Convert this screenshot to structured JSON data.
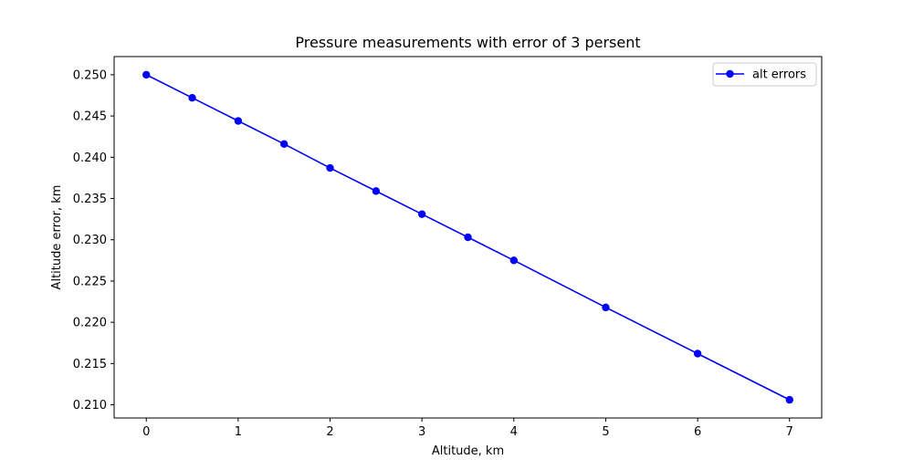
{
  "chart_data": {
    "type": "line",
    "title": "Pressure measurements with error of 3 persent",
    "xlabel": "Altitude, km",
    "ylabel": "Altitude error, km",
    "xlim": [
      -0.35,
      7.35
    ],
    "ylim": [
      0.2084,
      0.2522
    ],
    "xticks": [
      0,
      1,
      2,
      3,
      4,
      5,
      6,
      7
    ],
    "xtick_labels": [
      "0",
      "1",
      "2",
      "3",
      "4",
      "5",
      "6",
      "7"
    ],
    "yticks": [
      0.21,
      0.215,
      0.22,
      0.225,
      0.23,
      0.235,
      0.24,
      0.245,
      0.25
    ],
    "ytick_labels": [
      "0.210",
      "0.215",
      "0.220",
      "0.225",
      "0.230",
      "0.235",
      "0.240",
      "0.245",
      "0.250"
    ],
    "grid": false,
    "legend_position": "top-right",
    "series": [
      {
        "name": "alt errors",
        "color": "#0000ff",
        "marker": "circle",
        "x": [
          0,
          0.5,
          1,
          1.5,
          2,
          2.5,
          3,
          3.5,
          4,
          5,
          6,
          7
        ],
        "y": [
          0.25,
          0.2472,
          0.2444,
          0.2416,
          0.2387,
          0.2359,
          0.2331,
          0.2303,
          0.2275,
          0.2218,
          0.2162,
          0.2106
        ]
      }
    ]
  }
}
